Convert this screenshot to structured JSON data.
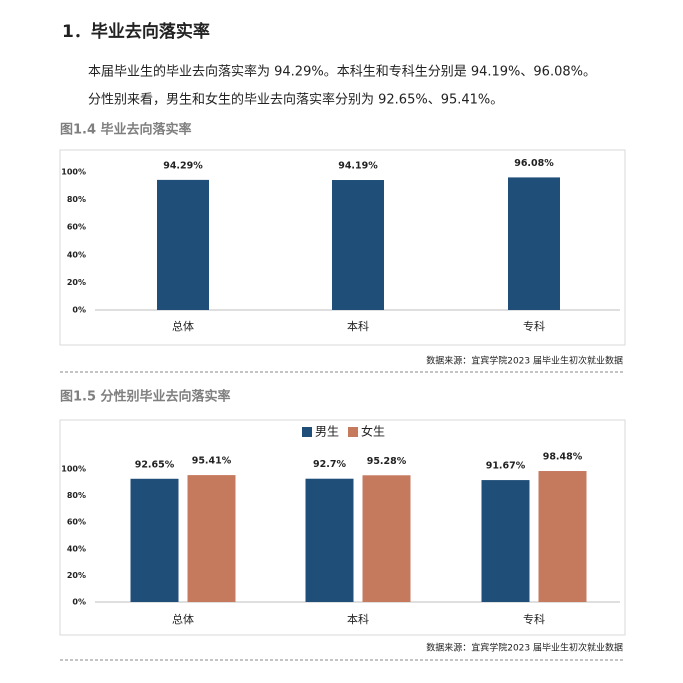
{
  "heading": "1．毕业去向落实率",
  "paragraphs": [
    "本届毕业生的毕业去向落实率为 94.29%。本科生和专科生分别是 94.19%、96.08%。",
    "分性别来看，男生和女生的毕业去向落实率分别为 92.65%、95.41%。"
  ],
  "chart_data": [
    {
      "type": "bar",
      "title": "图1.4 毕业去向落实率",
      "source": "数据来源：宜宾学院2023 届毕业生初次就业数据",
      "categories": [
        "总体",
        "本科",
        "专科"
      ],
      "values": [
        94.29,
        94.19,
        96.08
      ],
      "value_labels": [
        "94.29%",
        "94.19%",
        "96.08%"
      ],
      "color": "#1f4e79",
      "ylim": [
        0,
        100
      ],
      "yticks": [
        {
          "value": 0,
          "label": "0%"
        },
        {
          "value": 20,
          "label": "20%"
        },
        {
          "value": 40,
          "label": "40%"
        },
        {
          "value": 60,
          "label": "60%"
        },
        {
          "value": 80,
          "label": "80%"
        },
        {
          "value": 100,
          "label": "100%"
        }
      ],
      "grid": false
    },
    {
      "type": "grouped-bar",
      "title": "图1.5 分性别毕业去向落实率",
      "source": "数据来源：宜宾学院2023 届毕业生初次就业数据",
      "categories": [
        "总体",
        "本科",
        "专科"
      ],
      "series": [
        {
          "name": "男生",
          "color": "#1f4e79",
          "values": [
            92.65,
            92.7,
            91.67
          ],
          "value_labels": [
            "92.65%",
            "92.7%",
            "91.67%"
          ]
        },
        {
          "name": "女生",
          "color": "#c5795d",
          "values": [
            95.41,
            95.28,
            98.48
          ],
          "value_labels": [
            "95.41%",
            "95.28%",
            "98.48%"
          ]
        }
      ],
      "ylim": [
        0,
        100
      ],
      "yticks": [
        {
          "value": 0,
          "label": "0%"
        },
        {
          "value": 20,
          "label": "20%"
        },
        {
          "value": 40,
          "label": "40%"
        },
        {
          "value": 60,
          "label": "60%"
        },
        {
          "value": 80,
          "label": "80%"
        },
        {
          "value": 100,
          "label": "100%"
        }
      ],
      "grid": false,
      "legend": "top"
    }
  ]
}
